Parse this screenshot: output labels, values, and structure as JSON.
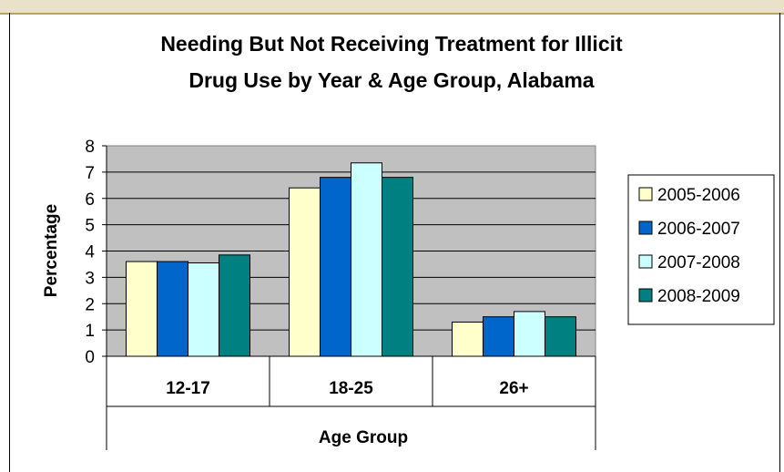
{
  "chart_data": {
    "type": "bar",
    "title_lines": [
      "Needing But Not Receiving Treatment for Illicit",
      "Drug Use by Year & Age Group, Alabama"
    ],
    "xlabel": "Age Group",
    "ylabel": "Percentage",
    "categories": [
      "12-17",
      "18-25",
      "26+"
    ],
    "ylim": [
      0,
      8
    ],
    "yticks": [
      "0",
      "1",
      "2",
      "3",
      "4",
      "5",
      "6",
      "7",
      "8"
    ],
    "grid": true,
    "legend_position": "right",
    "plot_background": "#c0c0c0",
    "series": [
      {
        "name": "2005-2006",
        "color": "#ffffcc",
        "values": [
          3.6,
          6.4,
          1.3
        ]
      },
      {
        "name": "2006-2007",
        "color": "#0066cc",
        "values": [
          3.6,
          6.8,
          1.5
        ]
      },
      {
        "name": "2007-2008",
        "color": "#ccffff",
        "values": [
          3.55,
          7.35,
          1.7
        ]
      },
      {
        "name": "2008-2009",
        "color": "#008080",
        "values": [
          3.85,
          6.8,
          1.5
        ]
      }
    ]
  }
}
